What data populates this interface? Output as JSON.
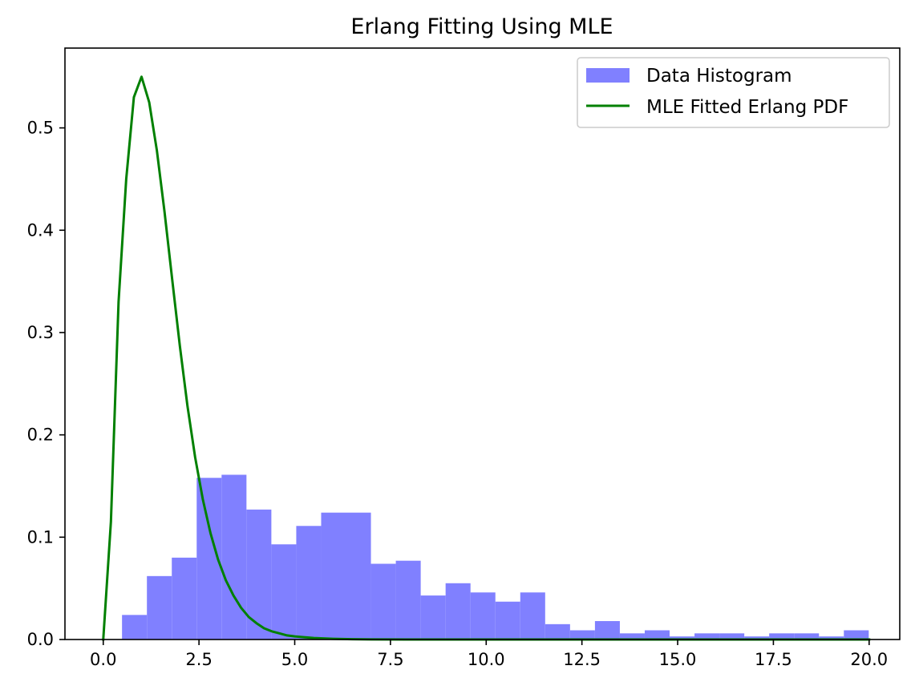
{
  "chart_data": {
    "type": "bar",
    "title": "Erlang Fitting Using MLE",
    "xlabel": "",
    "ylabel": "",
    "xlim": [
      -1.0,
      20.8
    ],
    "ylim": [
      0.0,
      0.578
    ],
    "x_ticks": [
      {
        "value": 0.0,
        "label": "0.0"
      },
      {
        "value": 2.5,
        "label": "2.5"
      },
      {
        "value": 5.0,
        "label": "5.0"
      },
      {
        "value": 7.5,
        "label": "7.5"
      },
      {
        "value": 10.0,
        "label": "10.0"
      },
      {
        "value": 12.5,
        "label": "12.5"
      },
      {
        "value": 15.0,
        "label": "15.0"
      },
      {
        "value": 17.5,
        "label": "17.5"
      },
      {
        "value": 20.0,
        "label": "20.0"
      }
    ],
    "y_ticks": [
      {
        "value": 0.0,
        "label": "0.0"
      },
      {
        "value": 0.1,
        "label": "0.1"
      },
      {
        "value": 0.2,
        "label": "0.2"
      },
      {
        "value": 0.3,
        "label": "0.3"
      },
      {
        "value": 0.4,
        "label": "0.4"
      },
      {
        "value": 0.5,
        "label": "0.5"
      }
    ],
    "grid": false,
    "legend_placement": "top-right",
    "histogram": {
      "name": "Data Histogram",
      "color": "#8080ff",
      "bins": [
        {
          "start": 0.49,
          "end": 1.14,
          "value": 0.024
        },
        {
          "start": 1.14,
          "end": 1.79,
          "value": 0.062
        },
        {
          "start": 1.79,
          "end": 2.44,
          "value": 0.08
        },
        {
          "start": 2.44,
          "end": 3.09,
          "value": 0.158
        },
        {
          "start": 3.09,
          "end": 3.74,
          "value": 0.161
        },
        {
          "start": 3.74,
          "end": 4.39,
          "value": 0.127
        },
        {
          "start": 4.39,
          "end": 5.04,
          "value": 0.093
        },
        {
          "start": 5.04,
          "end": 5.69,
          "value": 0.111
        },
        {
          "start": 5.69,
          "end": 6.34,
          "value": 0.124
        },
        {
          "start": 6.34,
          "end": 6.99,
          "value": 0.124
        },
        {
          "start": 6.99,
          "end": 7.64,
          "value": 0.074
        },
        {
          "start": 7.64,
          "end": 8.29,
          "value": 0.077
        },
        {
          "start": 8.29,
          "end": 8.94,
          "value": 0.043
        },
        {
          "start": 8.94,
          "end": 9.59,
          "value": 0.055
        },
        {
          "start": 9.59,
          "end": 10.24,
          "value": 0.046
        },
        {
          "start": 10.24,
          "end": 10.89,
          "value": 0.037
        },
        {
          "start": 10.89,
          "end": 11.54,
          "value": 0.046
        },
        {
          "start": 11.54,
          "end": 12.19,
          "value": 0.015
        },
        {
          "start": 12.19,
          "end": 12.84,
          "value": 0.009
        },
        {
          "start": 12.84,
          "end": 13.49,
          "value": 0.018
        },
        {
          "start": 13.49,
          "end": 14.14,
          "value": 0.006
        },
        {
          "start": 14.14,
          "end": 14.79,
          "value": 0.009
        },
        {
          "start": 14.79,
          "end": 15.44,
          "value": 0.003
        },
        {
          "start": 15.44,
          "end": 16.09,
          "value": 0.006
        },
        {
          "start": 16.09,
          "end": 16.74,
          "value": 0.006
        },
        {
          "start": 16.74,
          "end": 17.39,
          "value": 0.003
        },
        {
          "start": 17.39,
          "end": 18.04,
          "value": 0.006
        },
        {
          "start": 18.04,
          "end": 18.69,
          "value": 0.006
        },
        {
          "start": 18.69,
          "end": 19.34,
          "value": 0.003
        },
        {
          "start": 19.34,
          "end": 19.99,
          "value": 0.009
        }
      ]
    },
    "fitted_pdf": {
      "name": "MLE Fitted Erlang PDF",
      "color": "#008000",
      "x": [
        0.0,
        0.2,
        0.4,
        0.6,
        0.8,
        1.0,
        1.2,
        1.4,
        1.6,
        1.8,
        2.0,
        2.2,
        2.4,
        2.6,
        2.8,
        3.0,
        3.2,
        3.4,
        3.6,
        3.8,
        4.0,
        4.2,
        4.4,
        4.6,
        4.8,
        5.0,
        5.5,
        6.0,
        6.5,
        7.0,
        8.0,
        9.0,
        10.0,
        12.0,
        15.0,
        17.5,
        20.0
      ],
      "y": [
        0.0,
        0.115,
        0.33,
        0.45,
        0.53,
        0.55,
        0.525,
        0.478,
        0.418,
        0.352,
        0.287,
        0.228,
        0.178,
        0.137,
        0.104,
        0.078,
        0.058,
        0.043,
        0.031,
        0.022,
        0.016,
        0.011,
        0.008,
        0.006,
        0.004,
        0.003,
        0.0015,
        0.0007,
        0.0003,
        0.0001,
        0.0,
        0.0,
        0.0,
        0.0,
        0.0,
        0.0,
        0.0
      ]
    }
  }
}
